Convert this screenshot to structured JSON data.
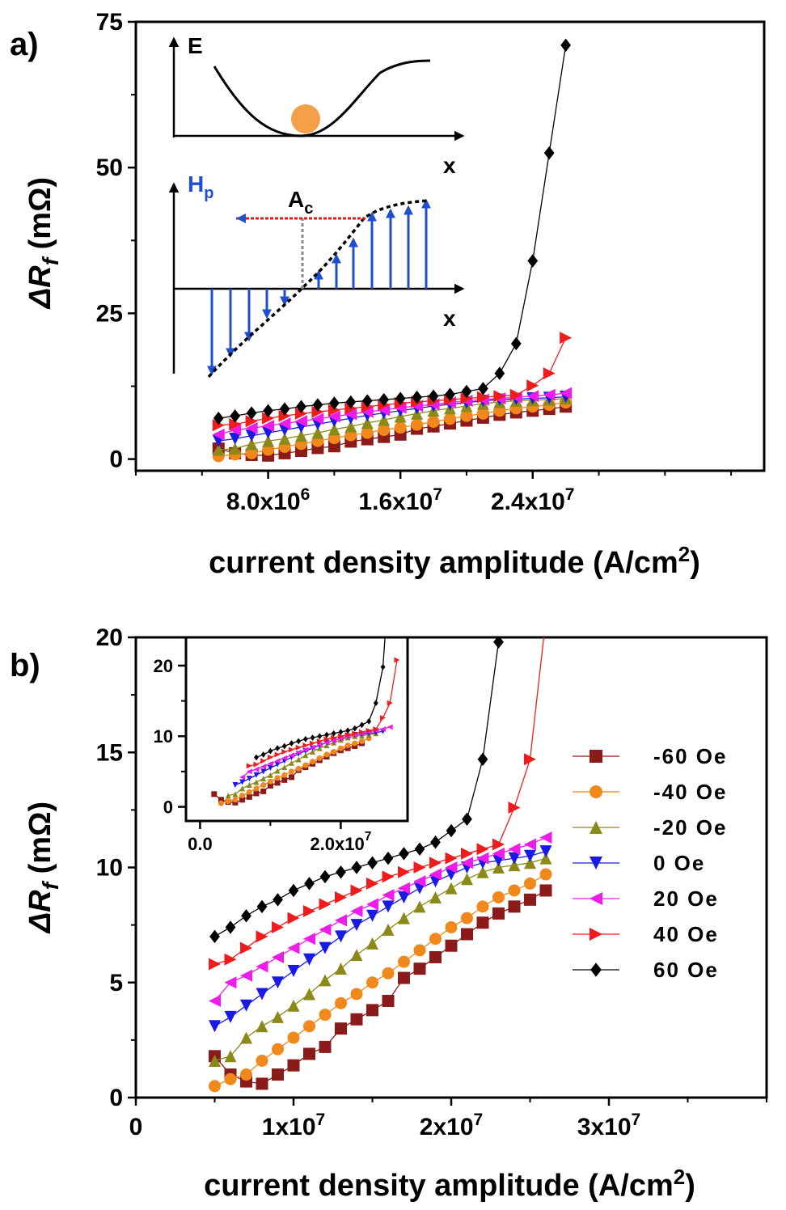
{
  "colors": {
    "-60 Oe": "#8b1a1a",
    "-40 Oe": "#f0881c",
    "-20 Oe": "#8b8a18",
    "0 Oe": "#1a1ae6",
    "20 Oe": "#ee1ce8",
    "40 Oe": "#ee1c1c",
    "60 Oe": "#000000",
    "energy_ball": "#f4a04a",
    "pinning_arrows": "#1f4fcf",
    "ac_dotted": "#e01b1b",
    "hp_label": "#1f4fcf"
  },
  "chart_data": [
    {
      "panel": "a)",
      "type": "line",
      "xlabel": "current density amplitude (A/cm",
      "xlabel_sup": "2",
      "xlabel_tail": ")",
      "ylabel_main": "ΔR",
      "ylabel_sub": "f",
      "ylabel_unit": " (mΩ)",
      "xlim": [
        0,
        38000000.0
      ],
      "ylim": [
        -2,
        75
      ],
      "xticks": [
        8000000.0,
        16000000.0,
        24000000.0
      ],
      "xtick_labels": [
        {
          "mant": "8.0x10",
          "exp": "6"
        },
        {
          "mant": "1.6x10",
          "exp": "7"
        },
        {
          "mant": "2.4x10",
          "exp": "7"
        }
      ],
      "yticks": [
        0,
        25,
        50,
        75
      ],
      "x": [
        5000000.0,
        6000000.0,
        7000000.0,
        8000000.0,
        9000000.0,
        10000000.0,
        11000000.0,
        12000000.0,
        13000000.0,
        14000000.0,
        15000000.0,
        16000000.0,
        17000000.0,
        18000000.0,
        19000000.0,
        20000000.0,
        21000000.0,
        22000000.0,
        23000000.0,
        24000000.0,
        25000000.0,
        26000000.0
      ],
      "series": [
        {
          "name": "-60 Oe",
          "marker": "square",
          "values": [
            1.8,
            1.0,
            0.7,
            0.6,
            1.0,
            1.4,
            1.9,
            2.2,
            3.0,
            3.4,
            3.8,
            4.2,
            5.2,
            5.6,
            6.1,
            6.6,
            7.1,
            7.6,
            8.0,
            8.3,
            8.6,
            9.0
          ]
        },
        {
          "name": "-40 Oe",
          "marker": "circle",
          "values": [
            0.5,
            0.8,
            1.0,
            1.6,
            2.1,
            2.6,
            3.1,
            3.6,
            4.1,
            4.5,
            5.0,
            5.4,
            5.9,
            6.4,
            6.9,
            7.4,
            7.8,
            8.3,
            8.7,
            9.0,
            9.3,
            9.7
          ]
        },
        {
          "name": "-20 Oe",
          "marker": "triangle-up",
          "values": [
            1.6,
            1.8,
            2.6,
            3.1,
            3.5,
            4.0,
            4.5,
            5.1,
            5.6,
            6.2,
            6.7,
            7.3,
            7.8,
            8.3,
            8.7,
            9.1,
            9.5,
            9.8,
            10.0,
            10.1,
            10.2,
            10.4
          ]
        },
        {
          "name": "0 Oe",
          "marker": "triangle-down",
          "values": [
            3.1,
            3.5,
            4.0,
            4.5,
            5.0,
            5.5,
            6.0,
            6.5,
            7.0,
            7.5,
            7.9,
            8.3,
            8.7,
            9.1,
            9.4,
            9.7,
            10.0,
            10.2,
            10.3,
            10.4,
            10.5,
            10.7
          ]
        },
        {
          "name": "20 Oe",
          "marker": "triangle-left",
          "values": [
            4.2,
            5.0,
            5.3,
            5.7,
            6.1,
            6.5,
            6.9,
            7.3,
            7.7,
            8.1,
            8.4,
            8.8,
            9.1,
            9.4,
            9.7,
            10.0,
            10.2,
            10.4,
            10.6,
            10.8,
            11.0,
            11.3
          ]
        },
        {
          "name": "40 Oe",
          "marker": "triangle-right",
          "values": [
            5.8,
            6.0,
            6.5,
            7.0,
            7.4,
            7.8,
            8.1,
            8.4,
            8.7,
            9.0,
            9.3,
            9.6,
            9.8,
            10.0,
            10.2,
            10.4,
            10.6,
            10.8,
            11.0,
            12.6,
            14.7,
            20.8
          ]
        },
        {
          "name": "60 Oe",
          "marker": "diamond",
          "values": [
            7.0,
            7.4,
            7.9,
            8.3,
            8.6,
            9.0,
            9.3,
            9.6,
            9.8,
            10.0,
            10.2,
            10.4,
            10.6,
            10.8,
            11.1,
            11.6,
            12.1,
            14.7,
            19.8,
            34.0,
            52.5,
            71.0
          ]
        }
      ],
      "inset_schematic": {
        "top_ylabel": "E",
        "top_xlabel": "x",
        "bottom_ylabel_main": "H",
        "bottom_ylabel_sub": "p",
        "bottom_xlabel": "x",
        "mark_main": "A",
        "mark_sub": "c"
      }
    },
    {
      "panel": "b)",
      "type": "line",
      "xlabel": "current density amplitude (A/cm",
      "xlabel_sup": "2",
      "xlabel_tail": ")",
      "ylabel_main": "ΔR",
      "ylabel_sub": "f",
      "ylabel_unit": " (mΩ)",
      "xlim": [
        0,
        40000000.0
      ],
      "ylim": [
        0,
        20
      ],
      "xticks": [
        0,
        10000000.0,
        20000000.0,
        30000000.0
      ],
      "xtick_labels": [
        {
          "mant": "0",
          "exp": ""
        },
        {
          "mant": "1x10",
          "exp": "7"
        },
        {
          "mant": "2x10",
          "exp": "7"
        },
        {
          "mant": "3x10",
          "exp": "7"
        }
      ],
      "yticks": [
        0,
        5,
        10,
        15,
        20
      ],
      "legend_position": "right",
      "legend": [
        "-60 Oe",
        "-40 Oe",
        "-20 Oe",
        "0 Oe",
        "20 Oe",
        "40 Oe",
        "60 Oe"
      ],
      "inset": {
        "xlim": [
          -2000000.0,
          29500000.0
        ],
        "ylim": [
          -2,
          24
        ],
        "xticks": [
          0,
          20000000.0
        ],
        "xtick_labels": [
          {
            "mant": "0.0",
            "exp": ""
          },
          {
            "mant": "2.0x10",
            "exp": "7"
          }
        ],
        "yticks": [
          0,
          10,
          20
        ],
        "collapsed_shifts": {
          "-60 Oe": -3000000.0,
          "-40 Oe": -2000000.0,
          "-20 Oe": -1000000.0,
          "0 Oe": 0,
          "20 Oe": 1000000.0,
          "40 Oe": 2000000.0,
          "60 Oe": 3000000.0
        }
      }
    }
  ]
}
